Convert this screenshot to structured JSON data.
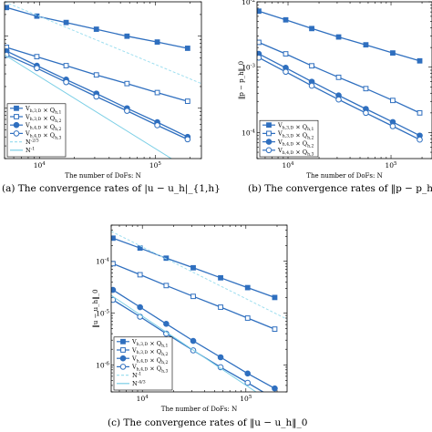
{
  "captions": {
    "a": "(a) The convergence rates of |u − u_h|_{1,h}",
    "b": "(b) The convergence rates of ‖p − p_h",
    "c": "(c) The convergence rates of ‖u − u_h‖_0"
  },
  "colors": {
    "series": "#2f6fbf",
    "ref1": "#7ccfe6",
    "ref2": "#9fdff0"
  },
  "chart_data": [
    {
      "type": "line",
      "id": "a",
      "xlabel": "The number of DoFs: N",
      "ylabel": "",
      "xlog": true,
      "ylog": true,
      "xlim": [
        5000,
        250000
      ],
      "ylim": [
        0.02,
        3
      ],
      "xticks": [
        {
          "v": 10000,
          "label": "10^4"
        },
        {
          "v": 100000,
          "label": "10^5"
        }
      ],
      "yticks": [],
      "legend_position": "bottom-left",
      "series": [
        {
          "name": "V_{h,3,D} × Q_{h,1}",
          "marker": "square-filled",
          "x": [
            5200,
            9500,
            17000,
            31000,
            57000,
            104000,
            190000
          ],
          "y": [
            2.5,
            1.9,
            1.55,
            1.25,
            1.0,
            0.83,
            0.68
          ]
        },
        {
          "name": "V_{h,3,D} × Q_{h,2}",
          "marker": "square-open",
          "x": [
            5200,
            9500,
            17000,
            31000,
            57000,
            104000,
            190000
          ],
          "y": [
            0.7,
            0.52,
            0.39,
            0.29,
            0.22,
            0.165,
            0.125
          ]
        },
        {
          "name": "V_{h,4,D} × Q_{h,2}",
          "marker": "circle-filled",
          "x": [
            5200,
            9500,
            17000,
            31000,
            57000,
            104000,
            190000
          ],
          "y": [
            0.62,
            0.39,
            0.25,
            0.16,
            0.1,
            0.064,
            0.04
          ]
        },
        {
          "name": "V_{h,4,D} × Q_{h,3}",
          "marker": "circle-open",
          "x": [
            5200,
            9500,
            17000,
            31000,
            57000,
            104000,
            190000
          ],
          "y": [
            0.55,
            0.36,
            0.23,
            0.145,
            0.092,
            0.058,
            0.037
          ]
        },
        {
          "name": "N^{-2/3}",
          "style": "dashed",
          "x": [
            5000,
            250000
          ],
          "y": [
            3.0,
            0.22
          ]
        },
        {
          "name": "N^{-1}",
          "style": "solid-light",
          "x": [
            5000,
            250000
          ],
          "y": [
            0.55,
            0.011
          ]
        }
      ]
    },
    {
      "type": "line",
      "id": "b",
      "xlabel": "The number of DoFs: N",
      "ylabel": "‖p − p_h‖_0",
      "xlog": true,
      "ylog": true,
      "xlim": [
        5000,
        250000
      ],
      "ylim": [
        4e-05,
        0.01
      ],
      "xticks": [
        {
          "v": 10000,
          "label": "10^4"
        },
        {
          "v": 100000,
          "label": "10^5"
        }
      ],
      "yticks": [
        {
          "v": 0.01,
          "label": "10^-2"
        },
        {
          "v": 0.001,
          "label": "10^-3"
        },
        {
          "v": 0.0001,
          "label": "10^-4"
        }
      ],
      "legend_position": "bottom-left",
      "series": [
        {
          "name": "V_{h,3,D} × Q_{h,1}",
          "marker": "square-filled",
          "x": [
            5200,
            9500,
            17000,
            31000,
            57000,
            104000,
            190000
          ],
          "y": [
            0.0072,
            0.0053,
            0.0039,
            0.0029,
            0.0022,
            0.00165,
            0.00125
          ]
        },
        {
          "name": "V_{h,3,D} × Q_{h,2}",
          "marker": "square-open",
          "x": [
            5200,
            9500,
            17000,
            31000,
            57000,
            104000,
            190000
          ],
          "y": [
            0.0024,
            0.0016,
            0.00105,
            0.0007,
            0.00047,
            0.00031,
            0.0002
          ]
        },
        {
          "name": "V_{h,4,D} × Q_{h,2}",
          "marker": "circle-filled",
          "x": [
            5200,
            9500,
            17000,
            31000,
            57000,
            104000,
            190000
          ],
          "y": [
            0.0016,
            0.00098,
            0.0006,
            0.00037,
            0.00023,
            0.000145,
            9e-05
          ]
        },
        {
          "name": "V_{h,4,D} × Q_{h,3}",
          "marker": "circle-open",
          "x": [
            5200,
            9500,
            17000,
            31000,
            57000,
            104000,
            190000
          ],
          "y": [
            0.0014,
            0.00085,
            0.00052,
            0.00032,
            0.0002,
            0.000125,
            7.8e-05
          ]
        }
      ]
    },
    {
      "type": "line",
      "id": "c",
      "xlabel": "The number of DoFs: N",
      "ylabel": "‖u − u_h‖_0",
      "xlog": true,
      "ylog": true,
      "xlim": [
        5000,
        250000
      ],
      "ylim": [
        3e-07,
        0.0005
      ],
      "xticks": [
        {
          "v": 10000,
          "label": "10^4"
        },
        {
          "v": 100000,
          "label": "10^5"
        }
      ],
      "yticks": [
        {
          "v": 0.0001,
          "label": "10^-4"
        },
        {
          "v": 1e-05,
          "label": "10^-5"
        },
        {
          "v": 1e-06,
          "label": "10^-6"
        }
      ],
      "legend_position": "bottom-left",
      "series": [
        {
          "name": "V_{h,3,D} × Q_{h,1}",
          "marker": "square-filled",
          "x": [
            5200,
            9500,
            17000,
            31000,
            57000,
            104000,
            190000
          ],
          "y": [
            0.00028,
            0.00018,
            0.000115,
            7.5e-05,
            4.8e-05,
            3.1e-05,
            2e-05
          ]
        },
        {
          "name": "V_{h,3,D} × Q_{h,2}",
          "marker": "square-open",
          "x": [
            5200,
            9500,
            17000,
            31000,
            57000,
            104000,
            190000
          ],
          "y": [
            9e-05,
            5.5e-05,
            3.4e-05,
            2.1e-05,
            1.3e-05,
            8e-06,
            4.9e-06
          ]
        },
        {
          "name": "V_{h,4,D} × Q_{h,2}",
          "marker": "circle-filled",
          "x": [
            5200,
            9500,
            17000,
            31000,
            57000,
            104000,
            190000
          ],
          "y": [
            2.8e-05,
            1.3e-05,
            6.2e-06,
            2.9e-06,
            1.4e-06,
            6.8e-07,
            3.5e-07
          ]
        },
        {
          "name": "V_{h,4,D} × Q_{h,3}",
          "marker": "circle-open",
          "x": [
            5200,
            9500,
            17000,
            31000,
            57000,
            104000,
            190000
          ],
          "y": [
            1.8e-05,
            8.5e-06,
            4e-06,
            1.9e-06,
            9e-07,
            4.5e-07,
            2.2e-07
          ]
        },
        {
          "name": "N^{-1}",
          "style": "dashed",
          "x": [
            5000,
            250000
          ],
          "y": [
            0.00038,
            7.6e-06
          ]
        },
        {
          "name": "N^{-4/3}",
          "style": "solid-light",
          "x": [
            5000,
            250000
          ],
          "y": [
            2.2e-05,
            1.19e-07
          ]
        }
      ]
    }
  ]
}
